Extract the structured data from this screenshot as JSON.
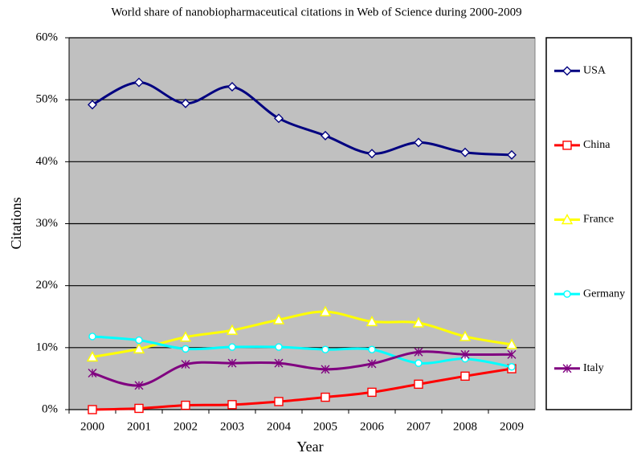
{
  "chart_data": {
    "type": "line",
    "title": "World share of nanobiopharmaceutical citations in Web of Science during 2000-2009",
    "x_label": "Year",
    "y_label": "Citations",
    "categories": [
      "2000",
      "2001",
      "2002",
      "2003",
      "2004",
      "2005",
      "2006",
      "2007",
      "2008",
      "2009"
    ],
    "series": [
      {
        "name": "USA",
        "color": "#000080",
        "marker": "diamond",
        "values": [
          49.2,
          52.8,
          49.4,
          52.1,
          47.0,
          44.2,
          41.3,
          43.1,
          41.5,
          41.1
        ]
      },
      {
        "name": "China",
        "color": "#ff0000",
        "marker": "square",
        "values": [
          0,
          0.2,
          0.7,
          0.8,
          1.3,
          2.0,
          2.8,
          4.1,
          5.4,
          6.6
        ]
      },
      {
        "name": "France",
        "color": "#ffff00",
        "marker": "triangle",
        "values": [
          8.5,
          9.8,
          11.7,
          12.8,
          14.5,
          15.8,
          14.2,
          14.0,
          11.8,
          10.5
        ]
      },
      {
        "name": "Germany",
        "color": "#00ffff",
        "marker": "circle",
        "values": [
          11.8,
          11.2,
          9.8,
          10.1,
          10.1,
          9.7,
          9.7,
          7.5,
          8.2,
          6.9
        ]
      },
      {
        "name": "Italy",
        "color": "#800080",
        "marker": "star",
        "values": [
          5.9,
          3.9,
          7.3,
          7.5,
          7.5,
          6.5,
          7.4,
          9.3,
          8.9,
          8.9
        ]
      }
    ],
    "ylim": [
      0,
      60
    ],
    "yticks": [
      {
        "value": 0,
        "label": "0%"
      },
      {
        "value": 10,
        "label": "10%"
      },
      {
        "value": 20,
        "label": "20%"
      },
      {
        "value": 30,
        "label": "30%"
      },
      {
        "value": 40,
        "label": "40%"
      },
      {
        "value": 50,
        "label": "50%"
      },
      {
        "value": 60,
        "label": "60%"
      }
    ],
    "grid": true,
    "legend": "right"
  }
}
